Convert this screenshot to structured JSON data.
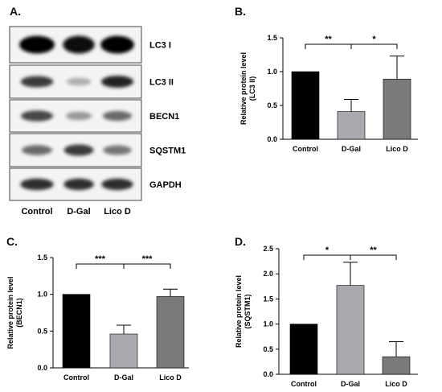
{
  "panels": {
    "a": "A.",
    "b": "B.",
    "c": "C.",
    "d": "D."
  },
  "blot": {
    "bands": [
      "LC3 I",
      "LC3 II",
      "BECN1",
      "SQSTM1",
      "GAPDH"
    ],
    "lanes": [
      "Control",
      "D-Gal",
      "Lico D"
    ],
    "band_intensity": [
      [
        1.0,
        0.95,
        0.98
      ],
      [
        0.75,
        0.25,
        0.85
      ],
      [
        0.7,
        0.35,
        0.55
      ],
      [
        0.55,
        0.75,
        0.5
      ],
      [
        0.8,
        0.8,
        0.8
      ]
    ]
  },
  "colors": {
    "control": "#000000",
    "dgal": "#a9a9b0",
    "lico": "#7a7a7a"
  },
  "chart_data": [
    {
      "id": "B",
      "type": "bar",
      "categories": [
        "Control",
        "D-Gal",
        "Lico D"
      ],
      "values": [
        1.0,
        0.41,
        0.89
      ],
      "errors": [
        0,
        0.18,
        0.34
      ],
      "ylabel": [
        "Relative protein level",
        "(LC3 II)"
      ],
      "ylim": [
        0,
        1.5
      ],
      "yticks": [
        "0.0",
        "0.5",
        "1.0",
        "1.5"
      ],
      "significance": [
        {
          "from": 0,
          "to": 1,
          "label": "**"
        },
        {
          "from": 1,
          "to": 2,
          "label": "*"
        }
      ]
    },
    {
      "id": "C",
      "type": "bar",
      "categories": [
        "Control",
        "D-Gal",
        "Lico D"
      ],
      "values": [
        1.0,
        0.46,
        0.97
      ],
      "errors": [
        0,
        0.12,
        0.1
      ],
      "ylabel": [
        "Relative protein level",
        "(BECN1)"
      ],
      "ylim": [
        0,
        1.5
      ],
      "yticks": [
        "0.0",
        "0.5",
        "1.0",
        "1.5"
      ],
      "significance": [
        {
          "from": 0,
          "to": 1,
          "label": "***"
        },
        {
          "from": 1,
          "to": 2,
          "label": "***"
        }
      ]
    },
    {
      "id": "D",
      "type": "bar",
      "categories": [
        "Control",
        "D-Gal",
        "Lico D"
      ],
      "values": [
        1.0,
        1.77,
        0.35
      ],
      "errors": [
        0,
        0.46,
        0.3
      ],
      "ylabel": [
        "Relative protein level",
        "(SQSTM1)"
      ],
      "ylim": [
        0,
        2.5
      ],
      "yticks": [
        "0.0",
        "0.5",
        "1.0",
        "1.5",
        "2.0",
        "2.5"
      ],
      "significance": [
        {
          "from": 0,
          "to": 1,
          "label": "*"
        },
        {
          "from": 1,
          "to": 2,
          "label": "**"
        }
      ]
    }
  ]
}
